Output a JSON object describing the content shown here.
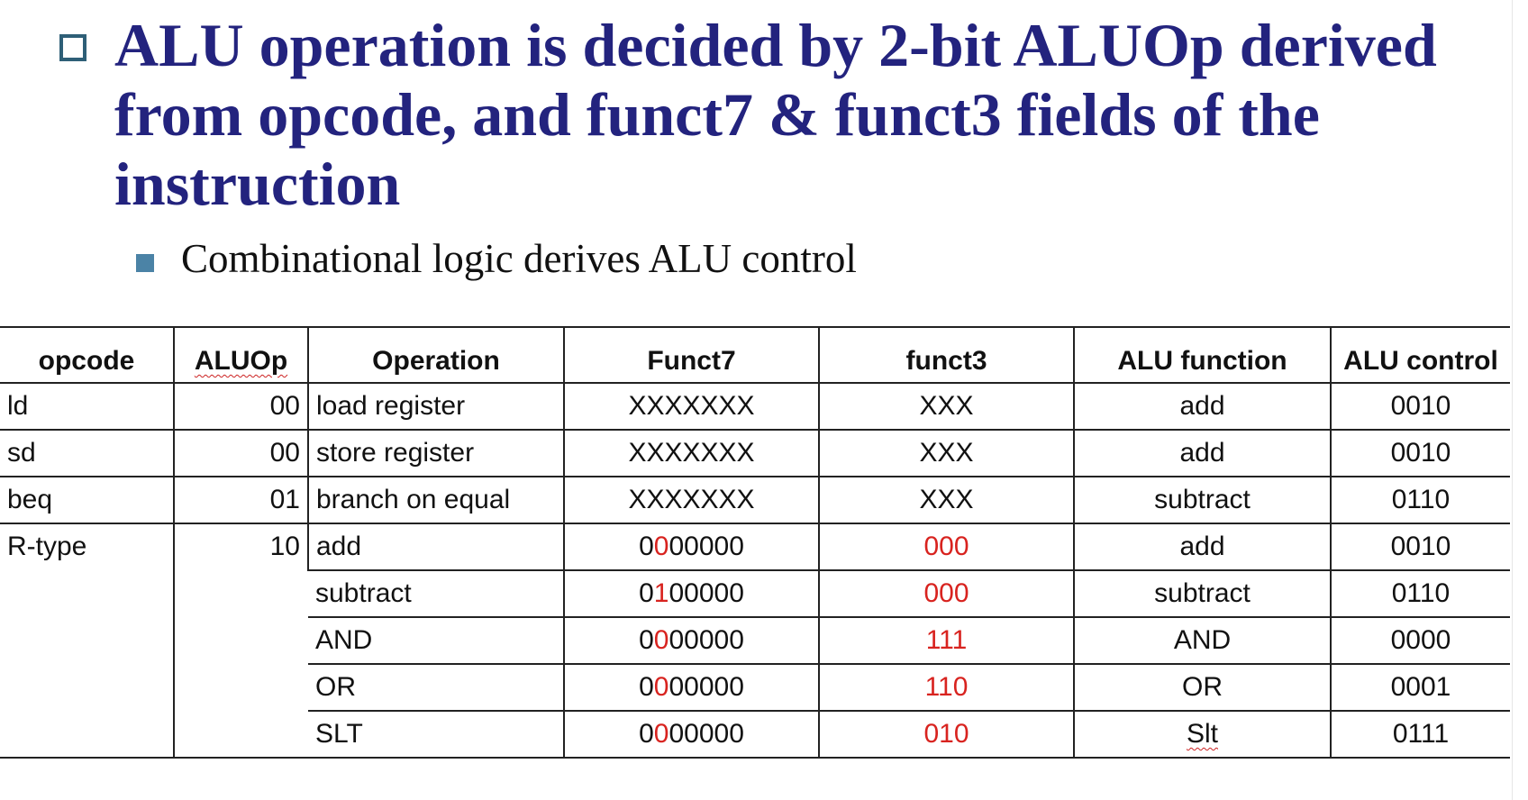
{
  "title": "ALU operation is decided by 2-bit ALUOp derived from opcode, and funct7 & funct3 fields of the instruction",
  "subtitle": "Combinational logic derives ALU control",
  "colors": {
    "title": "#23237e",
    "highlight": "#d8231f"
  },
  "table": {
    "headers": [
      "opcode",
      "ALUOp",
      "Operation",
      "Funct7",
      "funct3",
      "ALU function",
      "ALU control"
    ],
    "rows": [
      {
        "opcode": "ld",
        "aluop": "00",
        "operation": "load register",
        "funct7": "XXXXXXX",
        "funct3": "XXX",
        "alu_function": "add",
        "alu_control": "0010"
      },
      {
        "opcode": "sd",
        "aluop": "00",
        "operation": "store register",
        "funct7": "XXXXXXX",
        "funct3": "XXX",
        "alu_function": "add",
        "alu_control": "0010"
      },
      {
        "opcode": "beq",
        "aluop": "01",
        "operation": "branch on equal",
        "funct7": "XXXXXXX",
        "funct3": "XXX",
        "alu_function": "subtract",
        "alu_control": "0110"
      },
      {
        "opcode": "R-type",
        "aluop": "10",
        "operation": "add",
        "funct7_a": "0",
        "funct7_b": "0",
        "funct7_c": "00000",
        "funct3": "000",
        "alu_function": "add",
        "alu_control": "0010"
      },
      {
        "operation": "subtract",
        "funct7_a": "0",
        "funct7_b": "1",
        "funct7_c": "00000",
        "funct3": "000",
        "alu_function": "subtract",
        "alu_control": "0110"
      },
      {
        "operation": "AND",
        "funct7_a": "0",
        "funct7_b": "0",
        "funct7_c": "00000",
        "funct3": "111",
        "alu_function": "AND",
        "alu_control": "0000"
      },
      {
        "operation": "OR",
        "funct7_a": "0",
        "funct7_b": "0",
        "funct7_c": "00000",
        "funct3": "110",
        "alu_function": "OR",
        "alu_control": "0001"
      },
      {
        "operation": "SLT",
        "funct7_a": "0",
        "funct7_b": "0",
        "funct7_c": "00000",
        "funct3": "010",
        "alu_function": "Slt",
        "alu_control": "0111"
      }
    ]
  }
}
